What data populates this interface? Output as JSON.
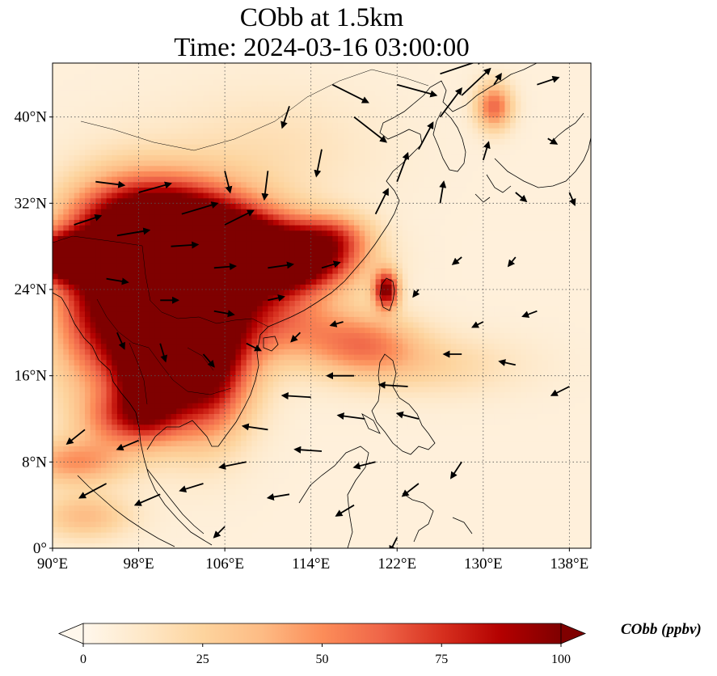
{
  "title": {
    "line1": "CObb at 1.5km",
    "line2": "Time: 2024-03-16 03:00:00"
  },
  "map": {
    "extent_lon": [
      90,
      140
    ],
    "extent_lat": [
      0,
      45
    ],
    "projection": "PlateCarree",
    "grid": "dotted",
    "lon_ticks": [
      {
        "value": 90,
        "label": "90°E"
      },
      {
        "value": 98,
        "label": "98°E"
      },
      {
        "value": 106,
        "label": "106°E"
      },
      {
        "value": 114,
        "label": "114°E"
      },
      {
        "value": 122,
        "label": "122°E"
      },
      {
        "value": 130,
        "label": "130°E"
      },
      {
        "value": 138,
        "label": "138°E"
      }
    ],
    "lat_ticks": [
      {
        "value": 0,
        "label": "0°"
      },
      {
        "value": 8,
        "label": "8°N"
      },
      {
        "value": 16,
        "label": "16°N"
      },
      {
        "value": 24,
        "label": "24°N"
      },
      {
        "value": 32,
        "label": "32°N"
      },
      {
        "value": 40,
        "label": "40°N"
      }
    ],
    "field_colormap": "OrRd",
    "concentration_features": [
      {
        "lon": 103,
        "lat": 25,
        "sigma_lon": 5.0,
        "sigma_lat": 4.5,
        "value": 100
      },
      {
        "lon": 96,
        "lat": 23,
        "sigma_lon": 4.0,
        "sigma_lat": 6.0,
        "value": 95
      },
      {
        "lon": 100,
        "lat": 30,
        "sigma_lon": 5.0,
        "sigma_lat": 3.0,
        "value": 90
      },
      {
        "lon": 108,
        "lat": 27.5,
        "sigma_lon": 4.5,
        "sigma_lat": 2.5,
        "value": 95
      },
      {
        "lon": 113,
        "lat": 26.5,
        "sigma_lon": 4.0,
        "sigma_lat": 1.8,
        "value": 70
      },
      {
        "lon": 116,
        "lat": 29,
        "sigma_lon": 2.5,
        "sigma_lat": 1.5,
        "value": 45
      },
      {
        "lon": 104,
        "lat": 17,
        "sigma_lon": 3.0,
        "sigma_lat": 4.5,
        "value": 100
      },
      {
        "lon": 99,
        "lat": 16,
        "sigma_lon": 2.0,
        "sigma_lat": 3.0,
        "value": 85
      },
      {
        "lon": 91,
        "lat": 27,
        "sigma_lon": 2.5,
        "sigma_lat": 1.5,
        "value": 95
      },
      {
        "lon": 121,
        "lat": 24,
        "sigma_lon": 0.8,
        "sigma_lat": 1.2,
        "value": 90
      },
      {
        "lon": 119,
        "lat": 19,
        "sigma_lon": 3.5,
        "sigma_lat": 2.0,
        "value": 42
      },
      {
        "lon": 112,
        "lat": 21,
        "sigma_lon": 4.0,
        "sigma_lat": 2.5,
        "value": 35
      },
      {
        "lon": 97,
        "lat": 12,
        "sigma_lon": 3.0,
        "sigma_lat": 1.8,
        "value": 45
      },
      {
        "lon": 92,
        "lat": 8,
        "sigma_lon": 3.5,
        "sigma_lat": 1.5,
        "value": 40
      },
      {
        "lon": 131,
        "lat": 41,
        "sigma_lon": 1.2,
        "sigma_lat": 1.5,
        "value": 55
      },
      {
        "lon": 125,
        "lat": 17,
        "sigma_lon": 6.0,
        "sigma_lat": 2.0,
        "value": 18
      },
      {
        "lon": 110,
        "lat": 37,
        "sigma_lon": 7.0,
        "sigma_lat": 4.0,
        "value": 12
      },
      {
        "lon": 93,
        "lat": 3,
        "sigma_lon": 3.0,
        "sigma_lat": 1.5,
        "value": 30
      }
    ],
    "wind_vectors": [
      {
        "lon": 94,
        "lat": 34,
        "u": 1.6,
        "v": -0.2
      },
      {
        "lon": 98,
        "lat": 33,
        "u": 1.8,
        "v": 0.5
      },
      {
        "lon": 102,
        "lat": 31,
        "u": 2.0,
        "v": 0.6
      },
      {
        "lon": 106,
        "lat": 30,
        "u": 1.6,
        "v": 0.8
      },
      {
        "lon": 92,
        "lat": 30,
        "u": 1.5,
        "v": 0.5
      },
      {
        "lon": 96,
        "lat": 29,
        "u": 1.8,
        "v": 0.3
      },
      {
        "lon": 101,
        "lat": 28,
        "u": 1.5,
        "v": 0.1
      },
      {
        "lon": 105,
        "lat": 26,
        "u": 1.2,
        "v": 0.1
      },
      {
        "lon": 110,
        "lat": 26,
        "u": 1.4,
        "v": 0.2
      },
      {
        "lon": 115,
        "lat": 26,
        "u": 1.0,
        "v": 0.3
      },
      {
        "lon": 95,
        "lat": 25,
        "u": 1.2,
        "v": -0.2
      },
      {
        "lon": 100,
        "lat": 23,
        "u": 1.0,
        "v": 0.0
      },
      {
        "lon": 105,
        "lat": 22,
        "u": 1.1,
        "v": -0.2
      },
      {
        "lon": 110,
        "lat": 23,
        "u": 0.9,
        "v": 0.2
      },
      {
        "lon": 96,
        "lat": 20,
        "u": 0.4,
        "v": -0.9
      },
      {
        "lon": 100,
        "lat": 19,
        "u": 0.3,
        "v": -1.0
      },
      {
        "lon": 104,
        "lat": 18,
        "u": 0.6,
        "v": -0.7
      },
      {
        "lon": 108,
        "lat": 19,
        "u": 0.8,
        "v": -0.4
      },
      {
        "lon": 112,
        "lat": 41,
        "u": -0.4,
        "v": -1.2
      },
      {
        "lon": 116,
        "lat": 43,
        "u": 2.0,
        "v": -1.0
      },
      {
        "lon": 118,
        "lat": 40,
        "u": 1.8,
        "v": -1.4
      },
      {
        "lon": 122,
        "lat": 43,
        "u": 2.2,
        "v": -0.6
      },
      {
        "lon": 115,
        "lat": 37,
        "u": -0.3,
        "v": -1.5
      },
      {
        "lon": 110,
        "lat": 35,
        "u": -0.2,
        "v": -1.6
      },
      {
        "lon": 106,
        "lat": 35,
        "u": 0.3,
        "v": -1.2
      },
      {
        "lon": 126,
        "lat": 44,
        "u": 2.4,
        "v": 0.8
      },
      {
        "lon": 128,
        "lat": 42,
        "u": 1.6,
        "v": 1.5
      },
      {
        "lon": 126,
        "lat": 40,
        "u": 1.2,
        "v": 1.6
      },
      {
        "lon": 124,
        "lat": 37,
        "u": 0.8,
        "v": 1.5
      },
      {
        "lon": 122,
        "lat": 34,
        "u": 0.6,
        "v": 1.6
      },
      {
        "lon": 120,
        "lat": 31,
        "u": 0.7,
        "v": 1.4
      },
      {
        "lon": 126,
        "lat": 32,
        "u": 0.2,
        "v": 1.2
      },
      {
        "lon": 130,
        "lat": 36,
        "u": 0.3,
        "v": 1.0
      },
      {
        "lon": 131,
        "lat": 43,
        "u": 0.4,
        "v": 0.6
      },
      {
        "lon": 135,
        "lat": 43,
        "u": 1.2,
        "v": 0.4
      },
      {
        "lon": 136,
        "lat": 38,
        "u": 0.5,
        "v": -0.3
      },
      {
        "lon": 133,
        "lat": 33,
        "u": 0.6,
        "v": -0.5
      },
      {
        "lon": 138,
        "lat": 33,
        "u": 0.3,
        "v": -0.7
      },
      {
        "lon": 128,
        "lat": 27,
        "u": -0.5,
        "v": -0.4
      },
      {
        "lon": 133,
        "lat": 27,
        "u": -0.4,
        "v": -0.5
      },
      {
        "lon": 124,
        "lat": 24,
        "u": -0.3,
        "v": -0.4
      },
      {
        "lon": 130,
        "lat": 21,
        "u": -0.6,
        "v": -0.3
      },
      {
        "lon": 135,
        "lat": 22,
        "u": -0.8,
        "v": -0.3
      },
      {
        "lon": 128,
        "lat": 18,
        "u": -1.0,
        "v": 0.0
      },
      {
        "lon": 133,
        "lat": 17,
        "u": -0.9,
        "v": 0.2
      },
      {
        "lon": 138,
        "lat": 15,
        "u": -1.0,
        "v": -0.5
      },
      {
        "lon": 118,
        "lat": 16,
        "u": -1.5,
        "v": 0.0
      },
      {
        "lon": 123,
        "lat": 15,
        "u": -1.6,
        "v": 0.1
      },
      {
        "lon": 114,
        "lat": 14,
        "u": -1.6,
        "v": 0.1
      },
      {
        "lon": 119,
        "lat": 12,
        "u": -1.5,
        "v": 0.2
      },
      {
        "lon": 124,
        "lat": 12,
        "u": -1.2,
        "v": 0.3
      },
      {
        "lon": 110,
        "lat": 11,
        "u": -1.4,
        "v": 0.2
      },
      {
        "lon": 115,
        "lat": 9,
        "u": -1.5,
        "v": 0.1
      },
      {
        "lon": 120,
        "lat": 8,
        "u": -1.2,
        "v": -0.3
      },
      {
        "lon": 108,
        "lat": 8,
        "u": -1.5,
        "v": -0.3
      },
      {
        "lon": 112,
        "lat": 5,
        "u": -1.2,
        "v": -0.2
      },
      {
        "lon": 104,
        "lat": 6,
        "u": -1.3,
        "v": -0.4
      },
      {
        "lon": 100,
        "lat": 5,
        "u": -1.4,
        "v": -0.6
      },
      {
        "lon": 95,
        "lat": 6,
        "u": -1.5,
        "v": -0.8
      },
      {
        "lon": 118,
        "lat": 4,
        "u": -1.0,
        "v": -0.6
      },
      {
        "lon": 124,
        "lat": 6,
        "u": -0.9,
        "v": -0.7
      },
      {
        "lon": 128,
        "lat": 8,
        "u": -0.6,
        "v": -0.9
      },
      {
        "lon": 98,
        "lat": 10,
        "u": -1.2,
        "v": -0.5
      },
      {
        "lon": 93,
        "lat": 11,
        "u": -1.0,
        "v": -0.8
      },
      {
        "lon": 106,
        "lat": 2,
        "u": -0.6,
        "v": -0.6
      },
      {
        "lon": 122,
        "lat": 1,
        "u": -0.4,
        "v": -0.8
      },
      {
        "lon": 113,
        "lat": 20,
        "u": -0.5,
        "v": -0.5
      },
      {
        "lon": 117,
        "lat": 21,
        "u": -0.7,
        "v": -0.2
      }
    ]
  },
  "colorbar": {
    "label": "CObb (ppbv)",
    "min": 0,
    "max": 100,
    "extend": "both",
    "ticks": [
      {
        "value": 0,
        "label": "0"
      },
      {
        "value": 25,
        "label": "25"
      },
      {
        "value": 50,
        "label": "50"
      },
      {
        "value": 75,
        "label": "75"
      },
      {
        "value": 100,
        "label": "100"
      }
    ]
  }
}
